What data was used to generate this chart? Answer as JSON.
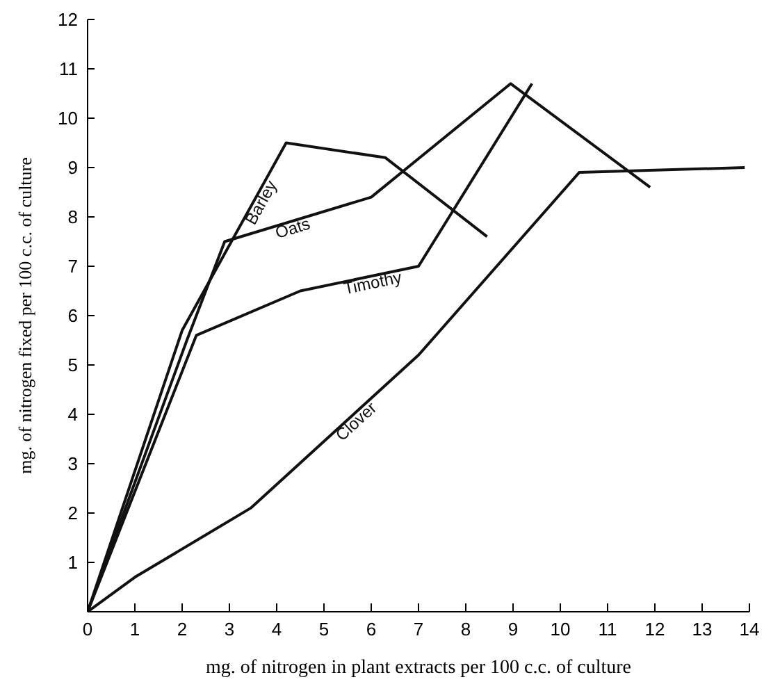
{
  "chart_data": {
    "type": "line",
    "xlabel": "mg. of nitrogen in plant extracts per 100 c.c. of culture",
    "ylabel": "mg. of nitrogen fixed per 100 c.c. of culture",
    "xlim": [
      0,
      14
    ],
    "ylim": [
      0,
      12
    ],
    "xticks": [
      0,
      1,
      2,
      3,
      4,
      5,
      6,
      7,
      8,
      9,
      10,
      11,
      12,
      13,
      14
    ],
    "yticks": [
      {
        "value": 0,
        "label": null
      },
      1,
      2,
      3,
      4,
      5,
      6,
      7,
      8,
      9,
      10,
      11,
      12
    ],
    "grid": false,
    "legend": false,
    "marker": "none",
    "line_style": "solid",
    "series": [
      {
        "name": "Barley",
        "color": "#111111",
        "x": [
          0,
          2,
          4.2,
          6.3,
          8.45
        ],
        "values": [
          0,
          5.7,
          9.5,
          9.2,
          7.6
        ]
      },
      {
        "name": "Oats",
        "color": "#111111",
        "x": [
          0,
          2.1,
          2.9,
          6,
          8.95,
          11.9
        ],
        "values": [
          0,
          5.5,
          7.5,
          8.4,
          10.7,
          8.6
        ]
      },
      {
        "name": "Timothy",
        "color": "#111111",
        "x": [
          0,
          2.3,
          4.5,
          7,
          9.4
        ],
        "values": [
          0,
          5.6,
          6.5,
          7,
          10.7
        ]
      },
      {
        "name": "Clover",
        "color": "#111111",
        "x": [
          0,
          1,
          3.45,
          7,
          10.4,
          13.9
        ],
        "values": [
          0,
          0.7,
          2.1,
          5.2,
          8.9,
          9.0
        ]
      }
    ]
  }
}
